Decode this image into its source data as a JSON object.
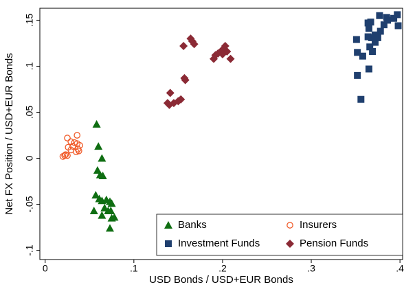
{
  "chart_data": {
    "type": "scatter",
    "xlabel": "USD Bonds / USD+EUR Bonds",
    "ylabel": "Net FX Position / USD+EUR Bonds",
    "xlim": [
      -0.006,
      0.403
    ],
    "ylim": [
      -0.11,
      0.163
    ],
    "xticks": [
      0,
      {
        "value": 0.1,
        "label": ".1"
      },
      {
        "value": 0.2,
        "label": ".2"
      },
      {
        "value": 0.3,
        "label": ".3"
      },
      {
        "value": 0.4,
        "label": ".4"
      }
    ],
    "yticks": [
      {
        "value": -0.1,
        "label": "-.1"
      },
      {
        "value": -0.05,
        "label": "-.05"
      },
      0,
      {
        "value": 0.05,
        "label": ".05"
      },
      {
        "value": 0.1,
        "label": ".1"
      },
      {
        "value": 0.15,
        "label": ".15"
      }
    ],
    "grid": false,
    "legend": "bottom right",
    "series": [
      {
        "name": "Banks",
        "color": "#0f6e12",
        "marker": "triangle",
        "x": [
          0.058,
          0.06,
          0.064,
          0.059,
          0.062,
          0.065,
          0.057,
          0.061,
          0.064,
          0.069,
          0.073,
          0.075,
          0.055,
          0.067,
          0.071,
          0.074,
          0.064,
          0.075,
          0.078,
          0.073
        ],
        "values": [
          0.037,
          0.013,
          0.0,
          -0.013,
          -0.018,
          -0.019,
          -0.04,
          -0.044,
          -0.046,
          -0.045,
          -0.047,
          -0.049,
          -0.057,
          -0.054,
          -0.057,
          -0.057,
          -0.062,
          -0.065,
          -0.064,
          -0.076
        ]
      },
      {
        "name": "Insurers",
        "color": "#f05a28",
        "marker": "circle-open",
        "x": [
          0.025,
          0.036,
          0.029,
          0.033,
          0.036,
          0.039,
          0.026,
          0.031,
          0.029,
          0.037,
          0.038,
          0.035,
          0.023,
          0.022,
          0.025,
          0.02
        ],
        "values": [
          0.022,
          0.025,
          0.018,
          0.017,
          0.016,
          0.014,
          0.012,
          0.013,
          0.009,
          0.01,
          0.008,
          0.007,
          0.004,
          0.003,
          0.003,
          0.002
        ]
      },
      {
        "name": "Investment Funds",
        "color": "#1f3f6e",
        "marker": "square",
        "x": [
          0.356,
          0.352,
          0.365,
          0.352,
          0.358,
          0.351,
          0.366,
          0.369,
          0.372,
          0.364,
          0.368,
          0.375,
          0.365,
          0.364,
          0.367,
          0.378,
          0.382,
          0.386,
          0.393,
          0.397,
          0.398,
          0.377,
          0.385,
          0.372
        ],
        "values": [
          0.064,
          0.09,
          0.097,
          0.115,
          0.111,
          0.129,
          0.121,
          0.116,
          0.126,
          0.132,
          0.131,
          0.131,
          0.141,
          0.147,
          0.148,
          0.138,
          0.145,
          0.15,
          0.152,
          0.156,
          0.144,
          0.155,
          0.153,
          0.134
        ]
      },
      {
        "name": "Pension Funds",
        "color": "#8b2a35",
        "marker": "diamond",
        "x": [
          0.14,
          0.138,
          0.145,
          0.15,
          0.153,
          0.141,
          0.158,
          0.157,
          0.156,
          0.164,
          0.166,
          0.168,
          0.19,
          0.192,
          0.195,
          0.198,
          0.201,
          0.203,
          0.205,
          0.209,
          0.2
        ],
        "values": [
          0.058,
          0.06,
          0.06,
          0.062,
          0.064,
          0.071,
          0.085,
          0.087,
          0.122,
          0.13,
          0.127,
          0.124,
          0.108,
          0.112,
          0.114,
          0.116,
          0.119,
          0.122,
          0.116,
          0.108,
          0.113
        ]
      }
    ]
  }
}
